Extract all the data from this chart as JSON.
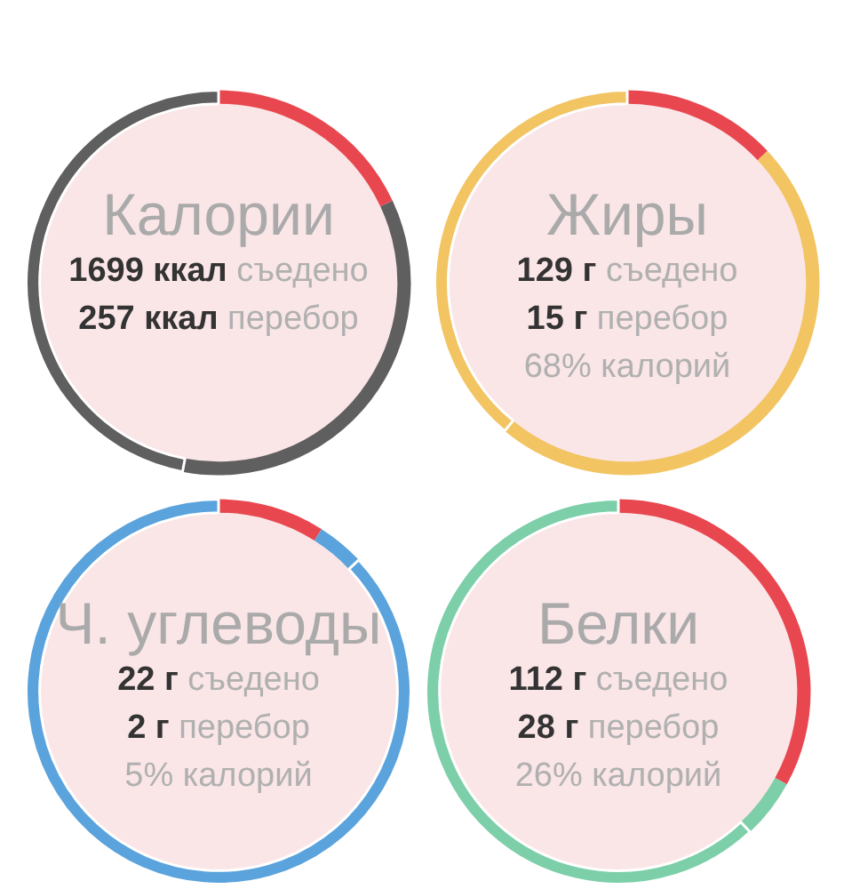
{
  "chart_data": [
    {
      "type": "donut",
      "title": "Калории",
      "categories": [
        null,
        null,
        null
      ],
      "values": [
        18,
        35,
        47
      ],
      "colors": [
        "#e8474f",
        "#5f5f5f",
        "#5f5f5f"
      ],
      "annotations": [
        "1699 ккал съедено",
        "257 ккал перебор"
      ]
    },
    {
      "type": "donut",
      "title": "Жиры",
      "categories": [
        null,
        null,
        null
      ],
      "values": [
        13,
        48,
        39
      ],
      "colors": [
        "#e8474f",
        "#f2c462",
        "#f2c462"
      ],
      "annotations": [
        "129 г съедено",
        "15 г перебор",
        "68% калорий"
      ]
    },
    {
      "type": "donut",
      "title": "Ч. углеводы",
      "categories": [
        null,
        null,
        null
      ],
      "values": [
        9,
        4,
        87
      ],
      "colors": [
        "#e8474f",
        "#5ba3dc",
        "#5ba3dc"
      ],
      "annotations": [
        "22 г съедено",
        "2 г перебор",
        "5% калорий"
      ]
    },
    {
      "type": "donut",
      "title": "Белки",
      "categories": [
        null,
        null,
        null
      ],
      "values": [
        33,
        5,
        62
      ],
      "colors": [
        "#e8474f",
        "#7ccfa9",
        "#7ccfa9"
      ],
      "annotations": [
        "112 г съедено",
        "28 г перебор",
        "26% калорий"
      ]
    }
  ]
}
